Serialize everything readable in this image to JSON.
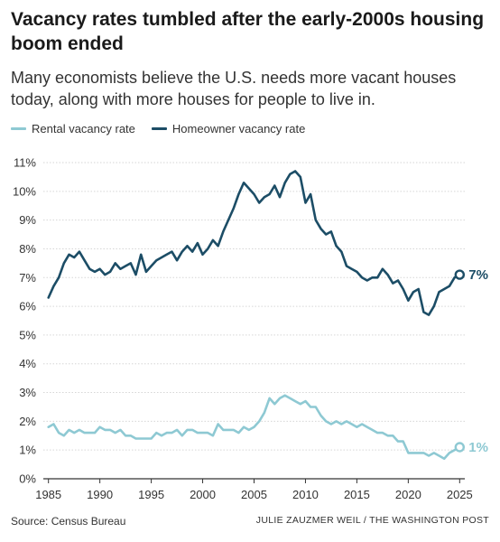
{
  "header": {
    "title": "Vacancy rates tumbled after the early-2000s housing boom ended",
    "subtitle": "Many economists believe the U.S. needs more vacant houses today, along with more houses for people to live in."
  },
  "legend": [
    {
      "label": "Rental vacancy rate",
      "color": "#8ec9d3"
    },
    {
      "label": "Homeowner vacancy rate",
      "color": "#1c4d66"
    }
  ],
  "footer": {
    "source": "Source: Census Bureau",
    "credit": "JULIE ZAUZMER WEIL / THE WASHINGTON POST"
  },
  "chart_data": {
    "type": "line",
    "xlim": [
      1984.5,
      2025.5
    ],
    "ylim": [
      0,
      11
    ],
    "x_ticks": [
      1985,
      1990,
      1995,
      2000,
      2005,
      2010,
      2015,
      2020,
      2025
    ],
    "x_tick_labels": [
      "1985",
      "1990",
      "1995",
      "2000",
      "2005",
      "2010",
      "2015",
      "2020",
      "2025"
    ],
    "y_ticks": [
      0,
      1,
      2,
      3,
      4,
      5,
      6,
      7,
      8,
      9,
      10,
      11
    ],
    "y_tick_labels": [
      "0%",
      "1%",
      "2%",
      "3%",
      "4%",
      "5%",
      "6%",
      "7%",
      "8%",
      "9%",
      "10%",
      "11%"
    ],
    "grid": "horizontal",
    "series": [
      {
        "name": "Rental vacancy rate",
        "color": "#8ec9d3",
        "end_label": "1%",
        "x": [
          1985,
          1985.5,
          1986,
          1986.5,
          1987,
          1987.5,
          1988,
          1988.5,
          1989,
          1989.5,
          1990,
          1990.5,
          1991,
          1991.5,
          1992,
          1992.5,
          1993,
          1993.5,
          1994,
          1994.5,
          1995,
          1995.5,
          1996,
          1996.5,
          1997,
          1997.5,
          1998,
          1998.5,
          1999,
          1999.5,
          2000,
          2000.5,
          2001,
          2001.5,
          2002,
          2002.5,
          2003,
          2003.5,
          2004,
          2004.5,
          2005,
          2005.5,
          2006,
          2006.5,
          2007,
          2007.5,
          2008,
          2008.5,
          2009,
          2009.5,
          2010,
          2010.5,
          2011,
          2011.5,
          2012,
          2012.5,
          2013,
          2013.5,
          2014,
          2014.5,
          2015,
          2015.5,
          2016,
          2016.5,
          2017,
          2017.5,
          2018,
          2018.5,
          2019,
          2019.5,
          2020,
          2020.5,
          2021,
          2021.5,
          2022,
          2022.5,
          2023,
          2023.5,
          2024,
          2024.5,
          2025
        ],
        "values": [
          1.8,
          1.9,
          1.6,
          1.5,
          1.7,
          1.6,
          1.7,
          1.6,
          1.6,
          1.6,
          1.8,
          1.7,
          1.7,
          1.6,
          1.7,
          1.5,
          1.5,
          1.4,
          1.4,
          1.4,
          1.4,
          1.6,
          1.5,
          1.6,
          1.6,
          1.7,
          1.5,
          1.7,
          1.7,
          1.6,
          1.6,
          1.6,
          1.5,
          1.9,
          1.7,
          1.7,
          1.7,
          1.6,
          1.8,
          1.7,
          1.8,
          2.0,
          2.3,
          2.8,
          2.6,
          2.8,
          2.9,
          2.8,
          2.7,
          2.6,
          2.7,
          2.5,
          2.5,
          2.2,
          2.0,
          1.9,
          2.0,
          1.9,
          2.0,
          1.9,
          1.8,
          1.9,
          1.8,
          1.7,
          1.6,
          1.6,
          1.5,
          1.5,
          1.3,
          1.3,
          0.9,
          0.9,
          0.9,
          0.9,
          0.8,
          0.9,
          0.8,
          0.7,
          0.9,
          1.0,
          1.1
        ]
      },
      {
        "name": "Homeowner vacancy rate",
        "color": "#1c4d66",
        "end_label": "7%",
        "x": [
          1985,
          1985.5,
          1986,
          1986.5,
          1987,
          1987.5,
          1988,
          1988.5,
          1989,
          1989.5,
          1990,
          1990.5,
          1991,
          1991.5,
          1992,
          1992.5,
          1993,
          1993.5,
          1994,
          1994.5,
          1995,
          1995.5,
          1996,
          1996.5,
          1997,
          1997.5,
          1998,
          1998.5,
          1999,
          1999.5,
          2000,
          2000.5,
          2001,
          2001.5,
          2002,
          2002.5,
          2003,
          2003.5,
          2004,
          2004.5,
          2005,
          2005.5,
          2006,
          2006.5,
          2007,
          2007.5,
          2008,
          2008.5,
          2009,
          2009.5,
          2010,
          2010.5,
          2011,
          2011.5,
          2012,
          2012.5,
          2013,
          2013.5,
          2014,
          2014.5,
          2015,
          2015.5,
          2016,
          2016.5,
          2017,
          2017.5,
          2018,
          2018.5,
          2019,
          2019.5,
          2020,
          2020.5,
          2021,
          2021.5,
          2022,
          2022.5,
          2023,
          2023.5,
          2024,
          2024.5,
          2025
        ],
        "values": [
          6.3,
          6.7,
          7.0,
          7.5,
          7.8,
          7.7,
          7.9,
          7.6,
          7.3,
          7.2,
          7.3,
          7.1,
          7.2,
          7.5,
          7.3,
          7.4,
          7.5,
          7.1,
          7.8,
          7.2,
          7.4,
          7.6,
          7.7,
          7.8,
          7.9,
          7.6,
          7.9,
          8.1,
          7.9,
          8.2,
          7.8,
          8.0,
          8.3,
          8.1,
          8.6,
          9.0,
          9.4,
          9.9,
          10.3,
          10.1,
          9.9,
          9.6,
          9.8,
          9.9,
          10.2,
          9.8,
          10.3,
          10.6,
          10.7,
          10.5,
          9.6,
          9.9,
          9.0,
          8.7,
          8.5,
          8.6,
          8.1,
          7.9,
          7.4,
          7.3,
          7.2,
          7.0,
          6.9,
          7.0,
          7.0,
          7.3,
          7.1,
          6.8,
          6.9,
          6.6,
          6.2,
          6.5,
          6.6,
          5.8,
          5.7,
          6.0,
          6.5,
          6.6,
          6.7,
          7.0,
          7.1
        ]
      }
    ]
  }
}
